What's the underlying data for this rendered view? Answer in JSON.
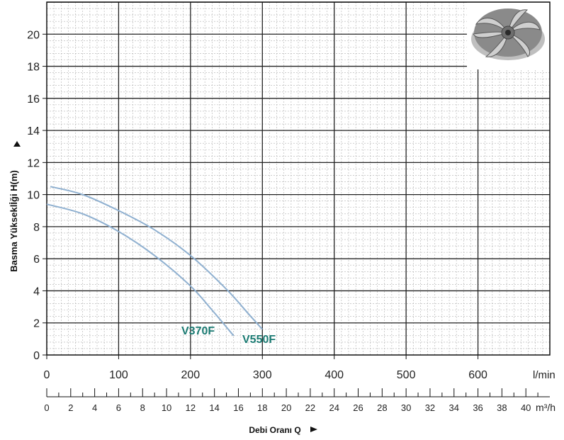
{
  "chart_data": {
    "type": "line",
    "ylabel": "Basma Yükseklİği H(m)",
    "xlabel": "Debi Oranı Q",
    "x_unit": "l/min",
    "x2_unit": "m³/h",
    "xlim": [
      0,
      700
    ],
    "ylim": [
      0,
      22
    ],
    "x_ticks": [
      "0",
      "100",
      "200",
      "300",
      "400",
      "500",
      "600"
    ],
    "x_tick_values": [
      0,
      100,
      200,
      300,
      400,
      500,
      600
    ],
    "y_ticks": [
      "0",
      "2",
      "4",
      "6",
      "8",
      "10",
      "12",
      "14",
      "16",
      "18",
      "20"
    ],
    "y_tick_values": [
      0,
      2,
      4,
      6,
      8,
      10,
      12,
      14,
      16,
      18,
      20
    ],
    "x2_ticks": [
      "0",
      "2",
      "4",
      "6",
      "8",
      "10",
      "12",
      "14",
      "16",
      "18",
      "20",
      "22",
      "24",
      "26",
      "28",
      "30",
      "32",
      "34",
      "36",
      "38",
      "40"
    ],
    "x2_tick_values": [
      0,
      2,
      4,
      6,
      8,
      10,
      12,
      14,
      16,
      18,
      20,
      22,
      24,
      26,
      28,
      30,
      32,
      34,
      36,
      38,
      40
    ],
    "x2_lim": [
      0,
      42
    ],
    "grid": true,
    "colors": {
      "curve": "#8fb0d0",
      "series_label": "#1a7a72",
      "grid_major": "#222222",
      "grid_minor": "#b0b0b0"
    },
    "image_icon": "impeller-image",
    "series": [
      {
        "name": "V550F",
        "x": [
          5,
          50,
          100,
          150,
          200,
          250,
          280,
          300
        ],
        "y": [
          10.5,
          10.0,
          9.0,
          7.8,
          6.2,
          4.1,
          2.6,
          1.6
        ]
      },
      {
        "name": "V370F",
        "x": [
          0,
          50,
          100,
          150,
          200,
          230,
          260
        ],
        "y": [
          9.4,
          8.8,
          7.7,
          6.2,
          4.3,
          2.8,
          1.2
        ]
      }
    ]
  }
}
